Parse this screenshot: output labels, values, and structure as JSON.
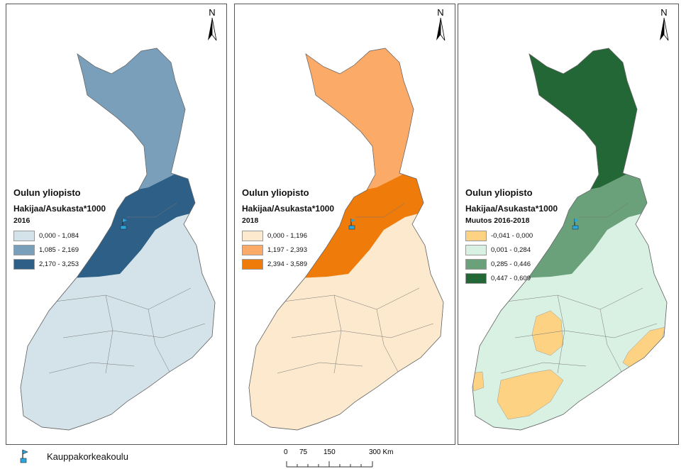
{
  "north_label": "N",
  "panels": [
    {
      "title": "Oulun yliopisto",
      "subtitle": "Hakijaa/Asukasta*1000",
      "year": "2016",
      "classes": [
        {
          "label": "0,000 - 1,084",
          "color": "#d4e3ea"
        },
        {
          "label": "1,085 - 2,169",
          "color": "#7a9fbb"
        },
        {
          "label": "2,170 - 3,253",
          "color": "#2e5f87"
        }
      ],
      "fill": {
        "north": "#7a9fbb",
        "middle": "#2e5f87",
        "south": "#d4e3ea"
      }
    },
    {
      "title": "Oulun yliopisto",
      "subtitle": "Hakijaa/Asukasta*1000",
      "year": "2018",
      "classes": [
        {
          "label": "0,000 - 1,196",
          "color": "#fde9cd"
        },
        {
          "label": "1,197 - 2,393",
          "color": "#fbaa68"
        },
        {
          "label": "2,394 - 3,589",
          "color": "#ee7b0a"
        }
      ],
      "fill": {
        "north": "#fbaa68",
        "middle": "#ee7b0a",
        "south": "#fde9cd"
      }
    },
    {
      "title": "Oulun yliopisto",
      "subtitle": "Hakijaa/Asukasta*1000",
      "year": "Muutos 2016-2018",
      "classes": [
        {
          "label": "-0,041 - 0,000",
          "color": "#fdd283"
        },
        {
          "label": "0,001 - 0,284",
          "color": "#d9f1e3"
        },
        {
          "label": "0,285 - 0,446",
          "color": "#6aa07a"
        },
        {
          "label": "0,447 - 0,609",
          "color": "#236736"
        }
      ],
      "fill": {
        "north": "#236736",
        "middle": "#6aa07a",
        "south": "#d9f1e3",
        "negative": "#fdd283"
      }
    }
  ],
  "footer": {
    "marker_label": "Kauppakorkeakoulu",
    "marker_color": "#29a8e0"
  },
  "scale": {
    "ticks": [
      "0",
      "75",
      "150",
      "300 Km"
    ]
  }
}
